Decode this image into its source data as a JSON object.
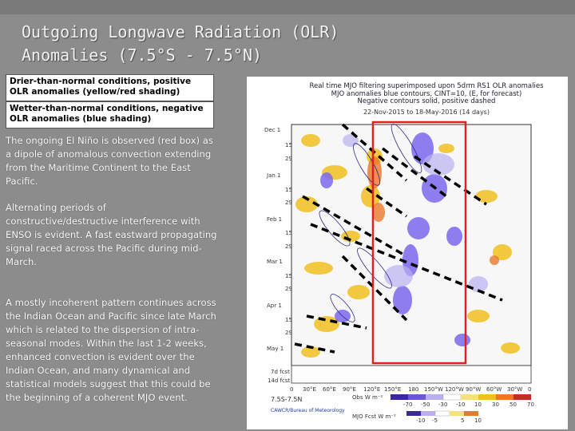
{
  "title": {
    "line1": "Outgoing Longwave Radiation (OLR)",
    "line2": "Anomalies (7.5°S - 7.5°N)"
  },
  "legend": {
    "dry": "Drier-than-normal conditions, positive OLR anomalies (yellow/red shading)",
    "wet": "Wetter-than-normal conditions, negative OLR anomalies (blue shading)"
  },
  "paragraphs": [
    "The ongoing El Niño is observed (red box) as a dipole of anomalous convection extending from the Maritime Continent to the East Pacific.",
    "Alternating periods of constructive/destructive interference with ENSO is evident. A fast eastward propagating signal raced across the Pacific during mid-March.",
    "A mostly incoherent pattern continues across the Indian Ocean and Pacific since late March which is related to the dispersion of intra-seasonal modes. Within the last 1-2 weeks, enhanced convection is evident over the Indian Ocean, and many dynamical and statistical models suggest that this could be the beginning of a coherent MJO event."
  ],
  "figure": {
    "header_line1": "Real time MJO filtering superimposed upon 5drm RS1 OLR anomalies",
    "header_line2": "MJO anomalies blue contours, CINT=10, (E, for forecast)",
    "header_line3": "Negative contours solid, positive dashed",
    "date_range": "22-Nov-2015 to 18-May-2016 (14 days)",
    "date_ticks": [
      "Dec 1",
      "15",
      "29",
      "Jan 1",
      "15",
      "29",
      "Feb 1",
      "15",
      "29",
      "Mar 1",
      "15",
      "29",
      "Apr 1",
      "15",
      "29",
      "May 1"
    ],
    "forecast_labels": [
      "7d fcst",
      "14d fcst"
    ],
    "lon_ticks": [
      "0",
      "30°E",
      "60°E",
      "90°E",
      "120°E",
      "150°E",
      "180",
      "150°W",
      "120°W",
      "90°W",
      "60°W",
      "30°W",
      "0"
    ],
    "lat_label": "7.5S-7.5N",
    "colorbar_obs_label": "Obs W m⁻²",
    "colorbar_obs_ticks": [
      "-70",
      "-50",
      "-30",
      "-10",
      "10",
      "30",
      "50",
      "70"
    ],
    "colorbar_fcst_label": "MJO Fcst W m⁻²",
    "colorbar_fcst_ticks": [
      "-10",
      "-5",
      "5",
      "10"
    ],
    "credit": "CAWCR/Bureau of Meteorology",
    "colors": {
      "box": "#e02020",
      "wet": "#6a5acd",
      "dry": "#f0c020",
      "line": "#000000"
    }
  }
}
